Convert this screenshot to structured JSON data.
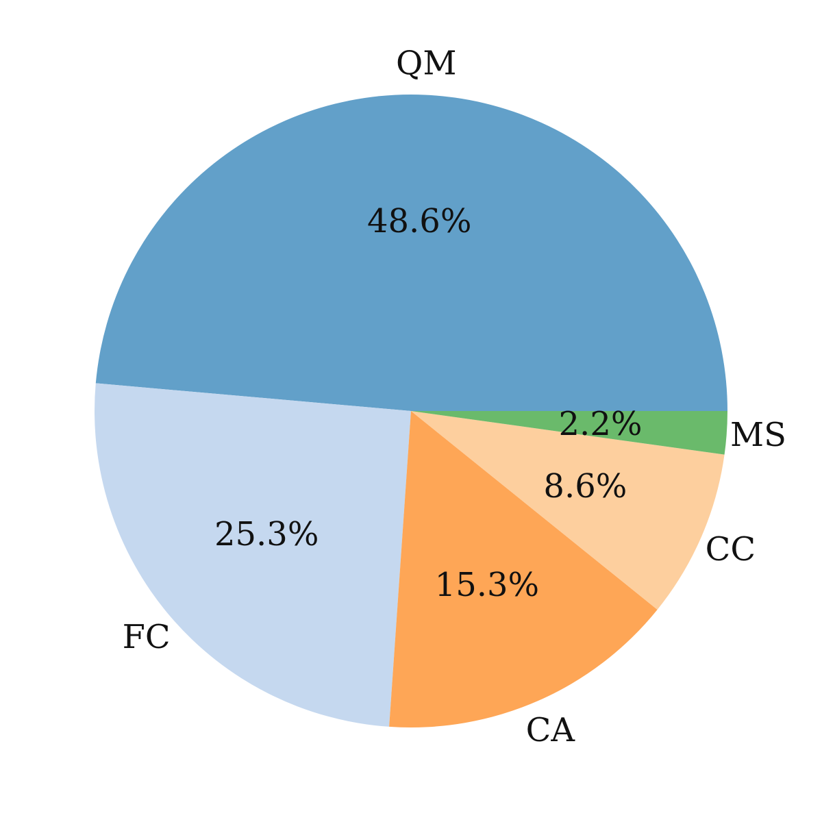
{
  "chart_data": {
    "type": "pie",
    "slices": [
      {
        "label": "QM",
        "value": 48.6,
        "pct_label": "48.6%",
        "color": "#62a0c9"
      },
      {
        "label": "FC",
        "value": 25.3,
        "pct_label": "25.3%",
        "color": "#c5d8ef"
      },
      {
        "label": "CA",
        "value": 15.3,
        "pct_label": "15.3%",
        "color": "#fea656"
      },
      {
        "label": "CC",
        "value": 8.6,
        "pct_label": "8.6%",
        "color": "#fdcf9e"
      },
      {
        "label": "MS",
        "value": 2.2,
        "pct_label": "2.2%",
        "color": "#6aba6b"
      }
    ],
    "start_angle_deg": 0,
    "direction": "counterclockwise"
  }
}
